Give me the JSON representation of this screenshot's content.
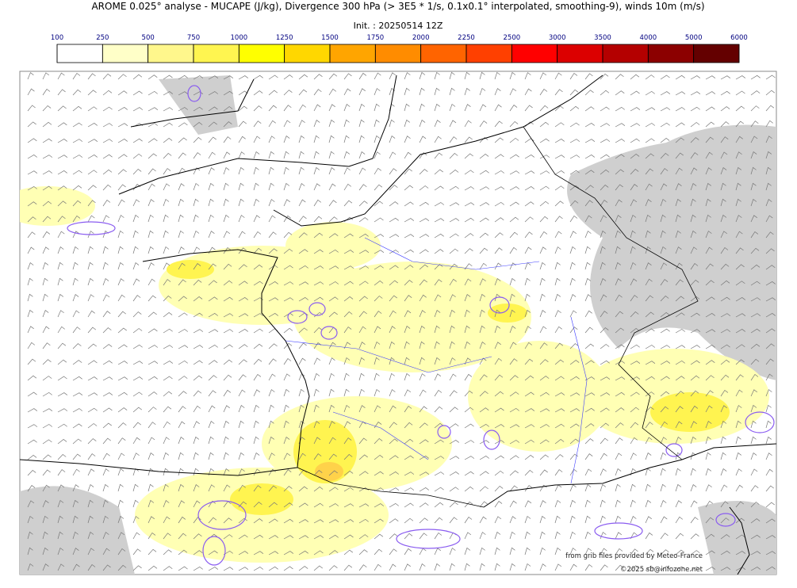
{
  "header": {
    "title": "AROME 0.025° analyse - MUCAPE (J/kg), Divergence 300 hPa (> 3E5 * 1/s, 0.1x0.1° interpolated, smoothing-9), winds 10m (m/s)",
    "subtitle": "Init. : 20250514 12Z"
  },
  "colorbar": {
    "ticks": [
      100,
      250,
      500,
      750,
      1000,
      1250,
      1500,
      1750,
      2000,
      2250,
      2500,
      3000,
      3500,
      4000,
      5000,
      6000
    ],
    "colors": [
      "#ffffff",
      "#ffffc8",
      "#fff78c",
      "#fff550",
      "#ffff00",
      "#ffd700",
      "#ffa500",
      "#ff8c00",
      "#ff6400",
      "#ff4000",
      "#ff0000",
      "#dc0000",
      "#b40000",
      "#8c0000",
      "#640000"
    ]
  },
  "credits": [
    "from grib files provided by Meteo-France",
    "©2025 sb@infozone.net"
  ]
}
